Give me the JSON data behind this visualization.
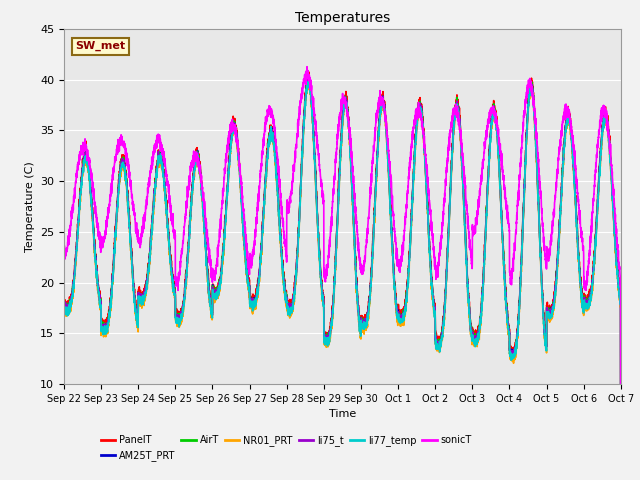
{
  "title": "Temperatures",
  "xlabel": "Time",
  "ylabel": "Temperature (C)",
  "ylim": [
    10,
    45
  ],
  "annotation_text": "SW_met",
  "annotation_color": "#8B0000",
  "annotation_bg": "#FFFACD",
  "annotation_border": "#8B6914",
  "plot_bg": "#E8E8E8",
  "fig_bg": "#F2F2F2",
  "series": [
    {
      "label": "PanelT",
      "color": "#FF0000",
      "lw": 1.2
    },
    {
      "label": "AM25T_PRT",
      "color": "#0000CC",
      "lw": 1.2
    },
    {
      "label": "AirT",
      "color": "#00CC00",
      "lw": 1.2
    },
    {
      "label": "NR01_PRT",
      "color": "#FFA500",
      "lw": 1.2
    },
    {
      "label": "li75_t",
      "color": "#9900CC",
      "lw": 1.2
    },
    {
      "label": "li77_temp",
      "color": "#00CCCC",
      "lw": 1.2
    },
    {
      "label": "sonicT",
      "color": "#FF00FF",
      "lw": 1.2
    }
  ],
  "xtick_labels": [
    "Sep 22",
    "Sep 23",
    "Sep 24",
    "Sep 25",
    "Sep 26",
    "Sep 27",
    "Sep 28",
    "Sep 29",
    "Sep 30",
    "Oct 1",
    "Oct 2",
    "Oct 3",
    "Oct 4",
    "Oct 5",
    "Oct 6",
    "Oct 7"
  ],
  "n_days": 15,
  "day_peaks": [
    32.5,
    32.0,
    32.5,
    32.5,
    35.5,
    35.0,
    40.0,
    38.0,
    38.0,
    37.5,
    37.5,
    37.0,
    39.5,
    36.5,
    36.5
  ],
  "day_mins": [
    17.5,
    15.5,
    18.5,
    16.5,
    19.0,
    18.0,
    17.5,
    14.5,
    16.0,
    16.5,
    14.0,
    14.5,
    13.0,
    17.0,
    18.0
  ],
  "sonic_peaks": [
    33.5,
    34.0,
    34.0,
    32.5,
    35.5,
    37.0,
    40.5,
    38.0,
    38.0,
    37.0,
    37.0,
    37.0,
    39.5,
    37.0,
    37.0
  ],
  "sonic_mins": [
    23.0,
    24.0,
    24.0,
    20.0,
    20.5,
    22.0,
    27.5,
    20.5,
    21.0,
    21.5,
    21.0,
    25.0,
    20.5,
    22.5,
    19.5
  ]
}
